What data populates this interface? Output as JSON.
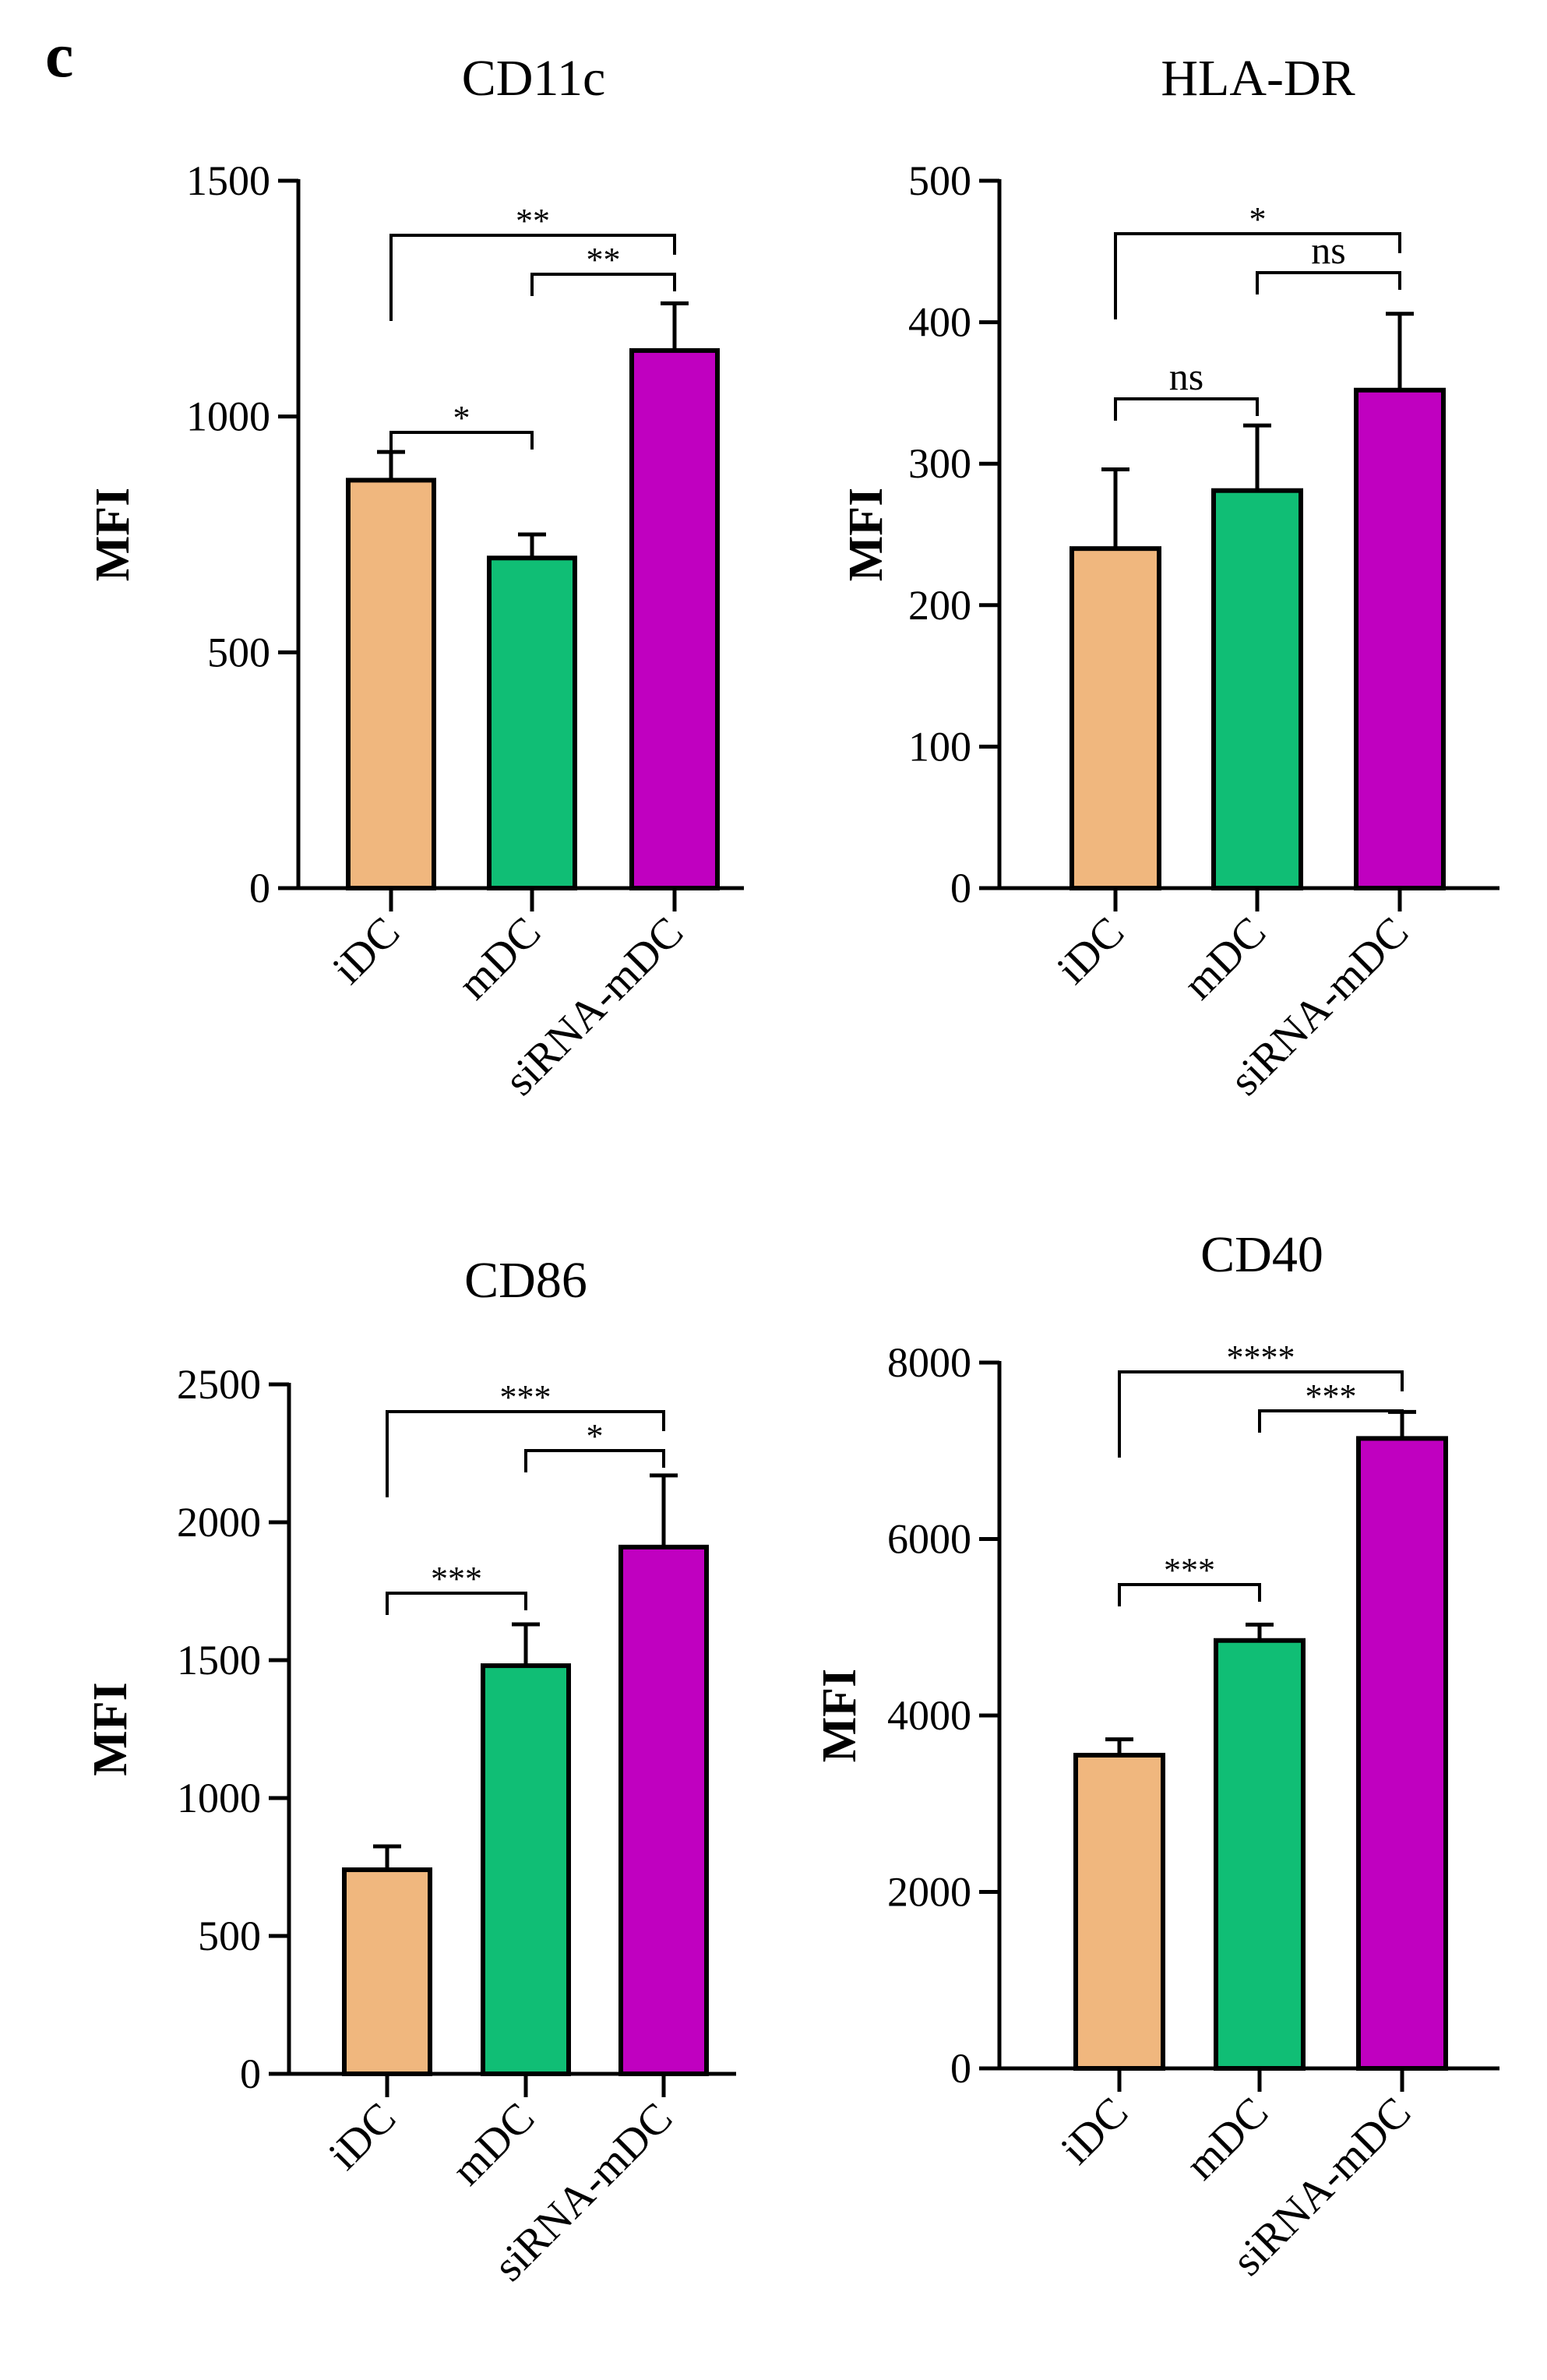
{
  "panel_label": "c",
  "chart_data": [
    {
      "type": "bar",
      "title": "CD11c",
      "xlabel": "",
      "ylabel": "MFI",
      "categories": [
        "iDC",
        "mDC",
        "siRNA-mDC"
      ],
      "values": [
        865,
        700,
        1140
      ],
      "errors": [
        60,
        50,
        100
      ],
      "ylim": [
        0,
        1500
      ],
      "yticks": [
        0,
        500,
        1000,
        1500
      ],
      "colors": [
        "#F0B77E",
        "#10BE75",
        "#C000C0"
      ],
      "significance": [
        {
          "from": 0,
          "to": 1,
          "label": "*"
        },
        {
          "from": 1,
          "to": 2,
          "label": "**"
        },
        {
          "from": 0,
          "to": 2,
          "label": "**"
        }
      ]
    },
    {
      "type": "bar",
      "title": "HLA-DR",
      "xlabel": "",
      "ylabel": "MFI",
      "categories": [
        "iDC",
        "mDC",
        "siRNA-mDC"
      ],
      "values": [
        240,
        281,
        352
      ],
      "errors": [
        56,
        46,
        54
      ],
      "ylim": [
        0,
        500
      ],
      "yticks": [
        0,
        100,
        200,
        300,
        400,
        500
      ],
      "colors": [
        "#F0B77E",
        "#10BE75",
        "#C000C0"
      ],
      "significance": [
        {
          "from": 0,
          "to": 1,
          "label": "ns"
        },
        {
          "from": 1,
          "to": 2,
          "label": "ns"
        },
        {
          "from": 0,
          "to": 2,
          "label": "*"
        }
      ]
    },
    {
      "type": "bar",
      "title": "CD86",
      "xlabel": "",
      "ylabel": "MFI",
      "categories": [
        "iDC",
        "mDC",
        "siRNA-mDC"
      ],
      "values": [
        740,
        1480,
        1910
      ],
      "errors": [
        85,
        150,
        260
      ],
      "ylim": [
        0,
        2500
      ],
      "yticks": [
        0,
        500,
        1000,
        1500,
        2000,
        2500
      ],
      "colors": [
        "#F0B77E",
        "#10BE75",
        "#C000C0"
      ],
      "significance": [
        {
          "from": 0,
          "to": 1,
          "label": "***"
        },
        {
          "from": 1,
          "to": 2,
          "label": "*"
        },
        {
          "from": 0,
          "to": 2,
          "label": "***"
        }
      ]
    },
    {
      "type": "bar",
      "title": "CD40",
      "xlabel": "",
      "ylabel": "MFI",
      "categories": [
        "iDC",
        "mDC",
        "siRNA-mDC"
      ],
      "values": [
        3550,
        4850,
        7140
      ],
      "errors": [
        180,
        180,
        300
      ],
      "ylim": [
        0,
        8000
      ],
      "yticks": [
        0,
        2000,
        4000,
        6000,
        8000
      ],
      "colors": [
        "#F0B77E",
        "#10BE75",
        "#C000C0"
      ],
      "significance": [
        {
          "from": 0,
          "to": 1,
          "label": "***"
        },
        {
          "from": 1,
          "to": 2,
          "label": "***"
        },
        {
          "from": 0,
          "to": 2,
          "label": "****"
        }
      ]
    }
  ]
}
